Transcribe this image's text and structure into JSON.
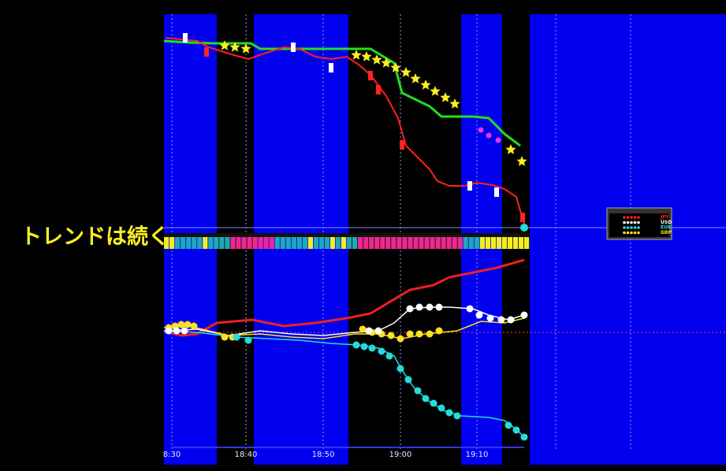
{
  "caption": "トレンドは続く",
  "time_axis": {
    "labels": [
      "8:30",
      "18:40",
      "18:50",
      "19:00",
      "19:10"
    ]
  },
  "currency_panel": {
    "labels": [
      "JPY",
      "USD",
      "EUR",
      "GBP"
    ],
    "colors": [
      "#ff2020",
      "#ffffff",
      "#20e0e0",
      "#ffe020"
    ]
  }
}
